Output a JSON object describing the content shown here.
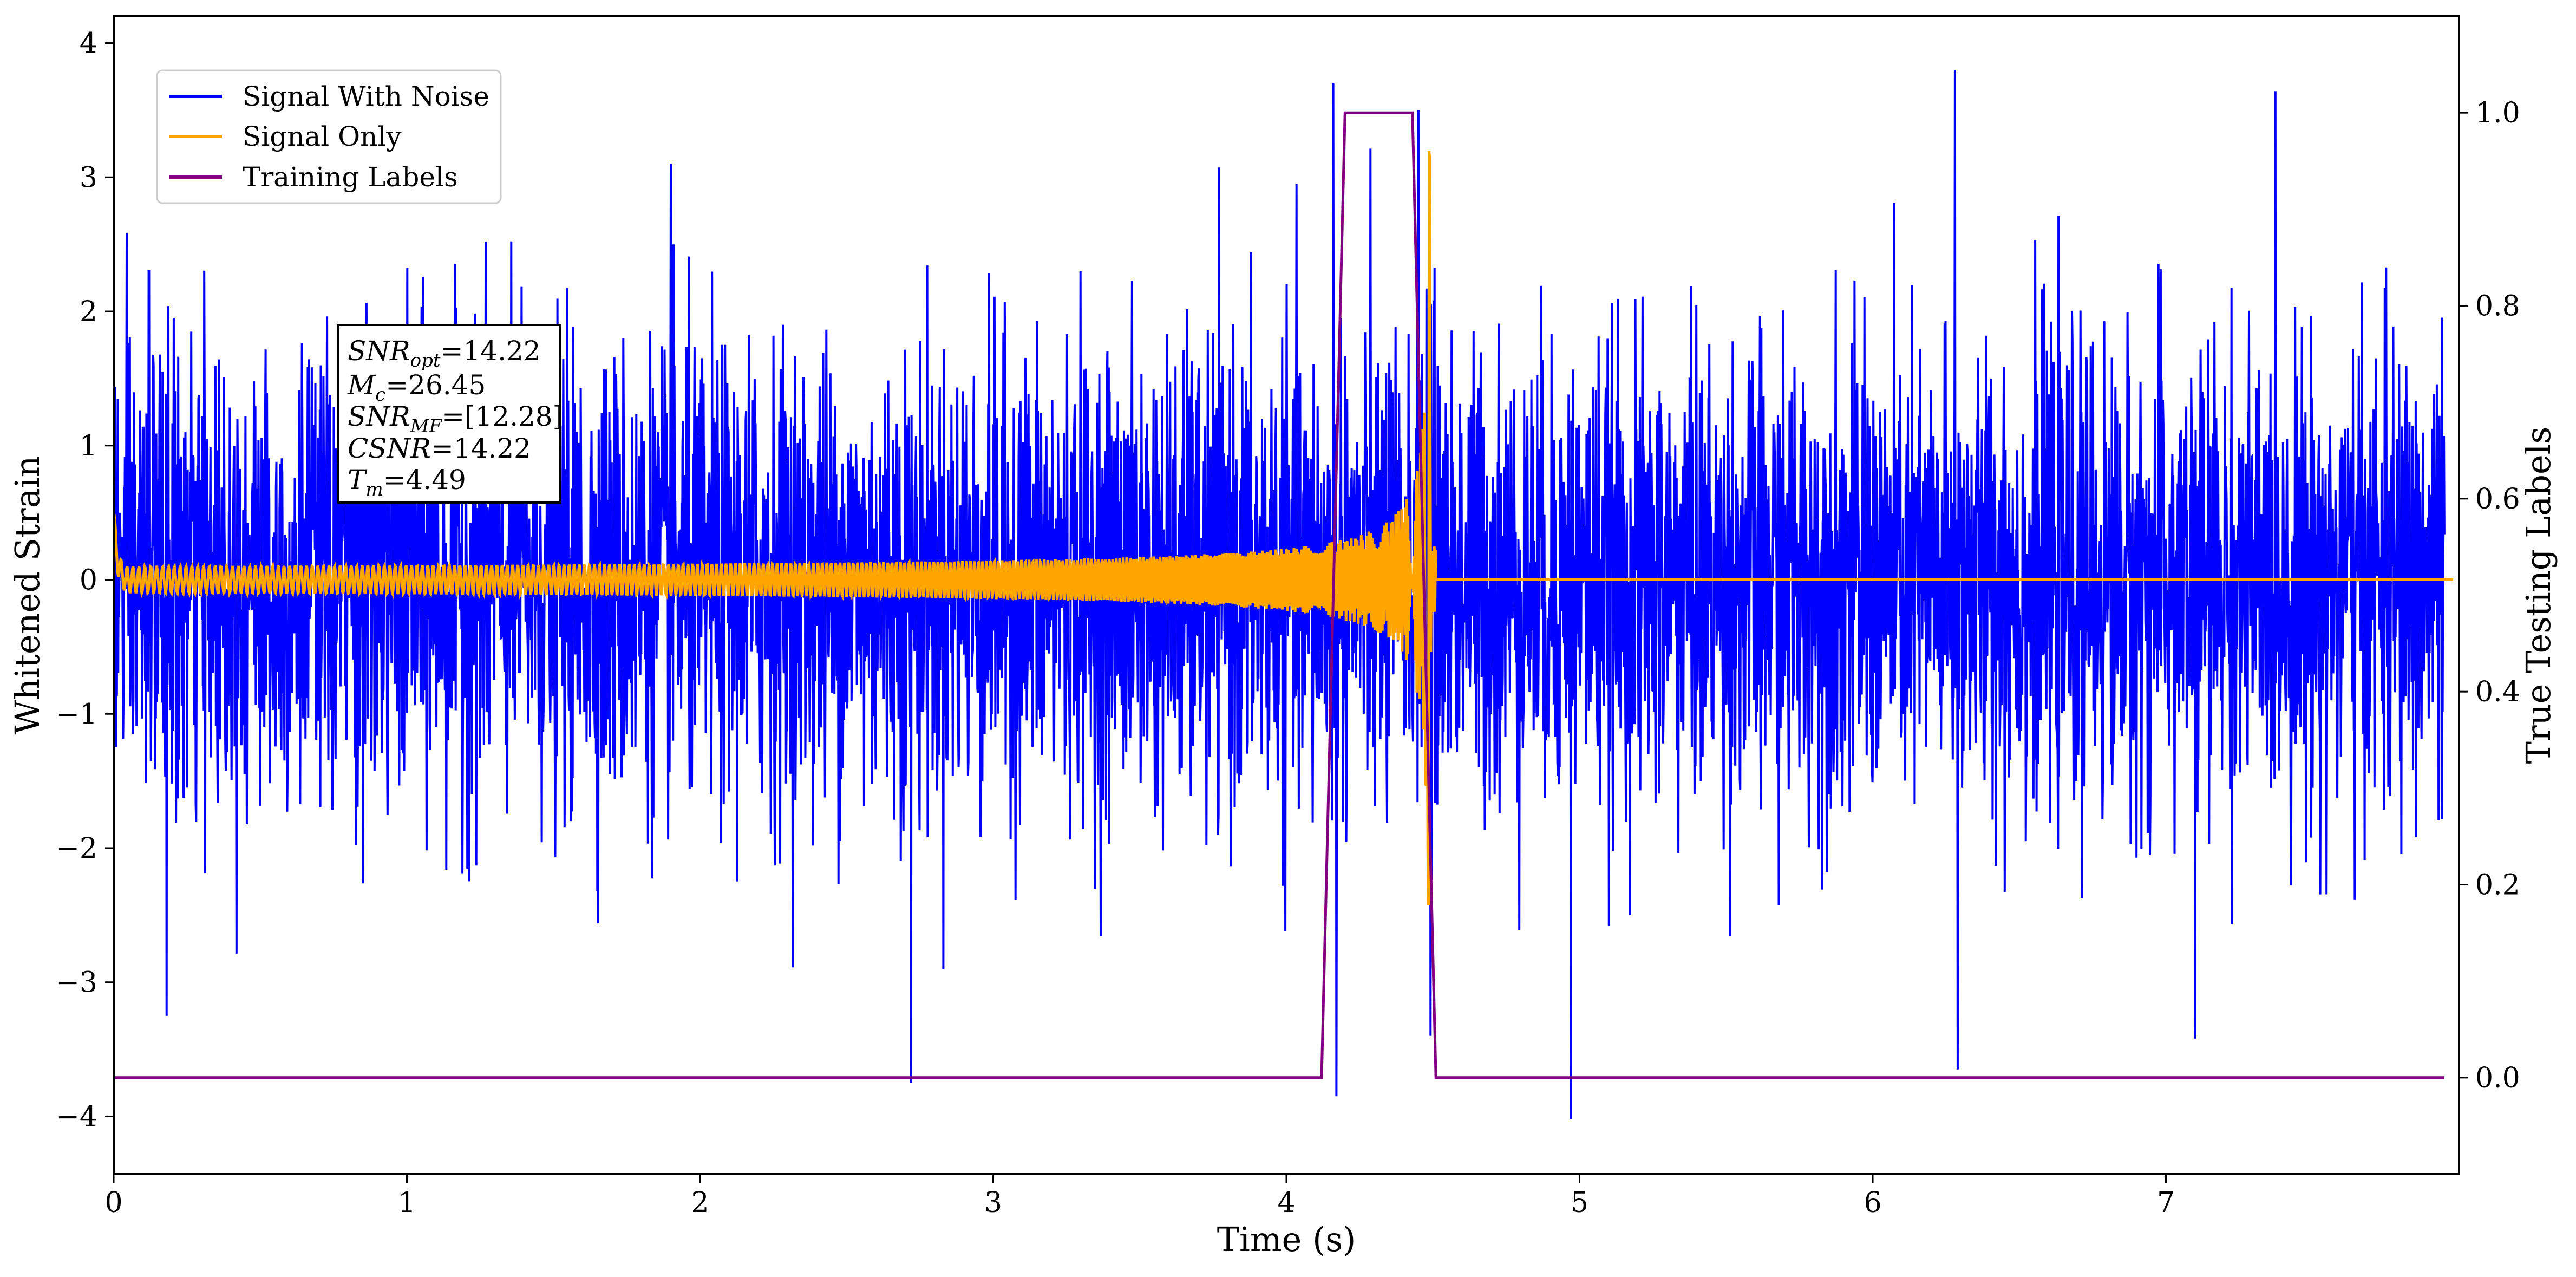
{
  "chart_data": {
    "type": "line",
    "title": "",
    "xlabel": "Time (s)",
    "ylabel": "Whitened Strain",
    "y2label": "True Testing Labels",
    "xlim": [
      0,
      8.0
    ],
    "ylim": [
      -4.43,
      4.2
    ],
    "y2lim": [
      -0.1,
      1.1
    ],
    "x_ticks": [
      0,
      1,
      2,
      3,
      4,
      5,
      6,
      7
    ],
    "x_tick_labels": [
      "0",
      "1",
      "2",
      "3",
      "4",
      "5",
      "6",
      "7"
    ],
    "y_ticks": [
      -4,
      -3,
      -2,
      -1,
      0,
      1,
      2,
      3,
      4
    ],
    "y_tick_labels": [
      "−4",
      "−3",
      "−2",
      "−1",
      "0",
      "1",
      "2",
      "3",
      "4"
    ],
    "y2_ticks": [
      0.0,
      0.2,
      0.4,
      0.6,
      0.8,
      1.0
    ],
    "y2_tick_labels": [
      "0.0",
      "0.2",
      "0.4",
      "0.6",
      "0.8",
      "1.0"
    ],
    "grid": false,
    "legend_placement": "top-left",
    "series": [
      {
        "name": "Signal With Noise",
        "color": "#0000ff",
        "axis": "left",
        "noise_std": 0.85,
        "peaks": [
          [
            0.12,
            2.3
          ],
          [
            0.18,
            -3.25
          ],
          [
            1.9,
            3.1
          ],
          [
            2.72,
            -3.75
          ],
          [
            4.16,
            3.7
          ],
          [
            4.17,
            -3.85
          ],
          [
            4.45,
            3.5
          ],
          [
            4.97,
            -4.02
          ],
          [
            6.28,
            3.8
          ],
          [
            6.29,
            -3.65
          ],
          [
            7.1,
            -3.42
          ]
        ]
      },
      {
        "name": "Signal Only",
        "color": "#ffa500",
        "axis": "left",
        "merger_time": 4.49,
        "start_time": 0.0,
        "end_time": 8.0,
        "peak_amplitude": 3.2
      },
      {
        "name": "Training Labels",
        "color": "#800080",
        "axis": "right",
        "x": [
          0.0,
          4.12,
          4.2,
          4.43,
          4.51,
          7.95
        ],
        "y": [
          0.0,
          0.0,
          1.0,
          1.0,
          0.0,
          0.0
        ]
      }
    ],
    "annotation": {
      "snr_opt_label": "SNR",
      "snr_opt_sub": "opt",
      "snr_opt_value": "=14.22",
      "mc_label": "M",
      "mc_sub": "c",
      "mc_value": "=26.45",
      "snr_mf_label": "SNR",
      "snr_mf_sub": "MF",
      "snr_mf_value": "=[12.28]",
      "csnr_label": "CSNR",
      "csnr_value": "=14.22",
      "tm_label": "T",
      "tm_sub": "m",
      "tm_value": "=4.49"
    }
  }
}
